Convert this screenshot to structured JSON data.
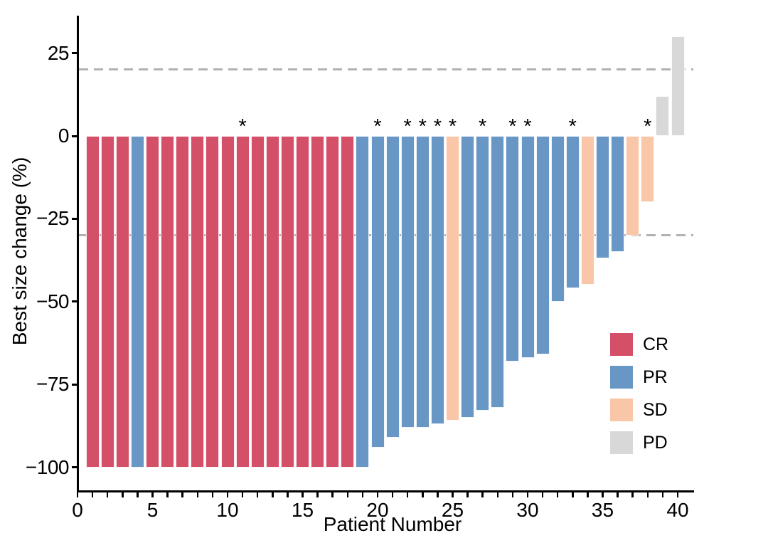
{
  "figure_title": "",
  "chart_data": {
    "type": "bar",
    "subtype": "waterfall",
    "title": "",
    "xlabel": "Patient Number",
    "ylabel": "Best size change (%)",
    "xlim": [
      0,
      41
    ],
    "ylim": [
      -107,
      36
    ],
    "grid": false,
    "yticks": [
      {
        "value": 25,
        "label": "25"
      },
      {
        "value": 0,
        "label": "0"
      },
      {
        "value": -25,
        "label": "−25"
      },
      {
        "value": -50,
        "label": "−50"
      },
      {
        "value": -75,
        "label": "−75"
      },
      {
        "value": -100,
        "label": "−100"
      }
    ],
    "xticks": {
      "minor_every": 1,
      "minor_max": 40,
      "labeled": [
        {
          "value": 0,
          "label": "0"
        },
        {
          "value": 5,
          "label": "5"
        },
        {
          "value": 10,
          "label": "10"
        },
        {
          "value": 15,
          "label": "15"
        },
        {
          "value": 20,
          "label": "20"
        },
        {
          "value": 25,
          "label": "25"
        },
        {
          "value": 30,
          "label": "30"
        },
        {
          "value": 35,
          "label": "35"
        },
        {
          "value": 40,
          "label": "40"
        }
      ]
    },
    "reference_lines": [
      {
        "value": 20,
        "style": "dashed",
        "color": "#B2B2B2"
      },
      {
        "value": -30,
        "style": "dashed",
        "color": "#B2B2B2"
      }
    ],
    "legend_position": "right-inside",
    "legend": [
      {
        "label": "CR",
        "color": "#D45069"
      },
      {
        "label": "PR",
        "color": "#6896C5"
      },
      {
        "label": "SD",
        "color": "#F9C6A8"
      },
      {
        "label": "PD",
        "color": "#D8D8D8"
      }
    ],
    "annotation_symbol": "*",
    "patients": [
      {
        "patient": 1,
        "value": -100,
        "response": "CR",
        "star": false
      },
      {
        "patient": 2,
        "value": -100,
        "response": "CR",
        "star": false
      },
      {
        "patient": 3,
        "value": -100,
        "response": "CR",
        "star": false
      },
      {
        "patient": 4,
        "value": -100,
        "response": "PR",
        "star": false
      },
      {
        "patient": 5,
        "value": -100,
        "response": "CR",
        "star": false
      },
      {
        "patient": 6,
        "value": -100,
        "response": "CR",
        "star": false
      },
      {
        "patient": 7,
        "value": -100,
        "response": "CR",
        "star": false
      },
      {
        "patient": 8,
        "value": -100,
        "response": "CR",
        "star": false
      },
      {
        "patient": 9,
        "value": -100,
        "response": "CR",
        "star": false
      },
      {
        "patient": 10,
        "value": -100,
        "response": "CR",
        "star": false
      },
      {
        "patient": 11,
        "value": -100,
        "response": "CR",
        "star": true
      },
      {
        "patient": 12,
        "value": -100,
        "response": "CR",
        "star": false
      },
      {
        "patient": 13,
        "value": -100,
        "response": "CR",
        "star": false
      },
      {
        "patient": 14,
        "value": -100,
        "response": "CR",
        "star": false
      },
      {
        "patient": 15,
        "value": -100,
        "response": "CR",
        "star": false
      },
      {
        "patient": 16,
        "value": -100,
        "response": "CR",
        "star": false
      },
      {
        "patient": 17,
        "value": -100,
        "response": "CR",
        "star": false
      },
      {
        "patient": 18,
        "value": -100,
        "response": "CR",
        "star": false
      },
      {
        "patient": 19,
        "value": -100,
        "response": "PR",
        "star": false
      },
      {
        "patient": 20,
        "value": -94,
        "response": "PR",
        "star": true
      },
      {
        "patient": 21,
        "value": -91,
        "response": "PR",
        "star": false
      },
      {
        "patient": 22,
        "value": -88,
        "response": "PR",
        "star": true
      },
      {
        "patient": 23,
        "value": -88,
        "response": "PR",
        "star": true
      },
      {
        "patient": 24,
        "value": -87,
        "response": "PR",
        "star": true
      },
      {
        "patient": 25,
        "value": -86,
        "response": "SD",
        "star": true
      },
      {
        "patient": 26,
        "value": -85,
        "response": "PR",
        "star": false
      },
      {
        "patient": 27,
        "value": -83,
        "response": "PR",
        "star": true
      },
      {
        "patient": 28,
        "value": -82,
        "response": "PR",
        "star": false
      },
      {
        "patient": 29,
        "value": -68,
        "response": "PR",
        "star": true
      },
      {
        "patient": 30,
        "value": -67,
        "response": "PR",
        "star": true
      },
      {
        "patient": 31,
        "value": -66,
        "response": "PR",
        "star": false
      },
      {
        "patient": 32,
        "value": -50,
        "response": "PR",
        "star": false
      },
      {
        "patient": 33,
        "value": -46,
        "response": "PR",
        "star": true
      },
      {
        "patient": 34,
        "value": -45,
        "response": "SD",
        "star": false
      },
      {
        "patient": 35,
        "value": -37,
        "response": "PR",
        "star": false
      },
      {
        "patient": 36,
        "value": -35,
        "response": "PR",
        "star": false
      },
      {
        "patient": 37,
        "value": -30,
        "response": "SD",
        "star": false
      },
      {
        "patient": 38,
        "value": -20,
        "response": "SD",
        "star": true
      },
      {
        "patient": 39,
        "value": 12,
        "response": "PD",
        "star": false
      },
      {
        "patient": 40,
        "value": 30,
        "response": "PD",
        "star": false
      }
    ]
  }
}
